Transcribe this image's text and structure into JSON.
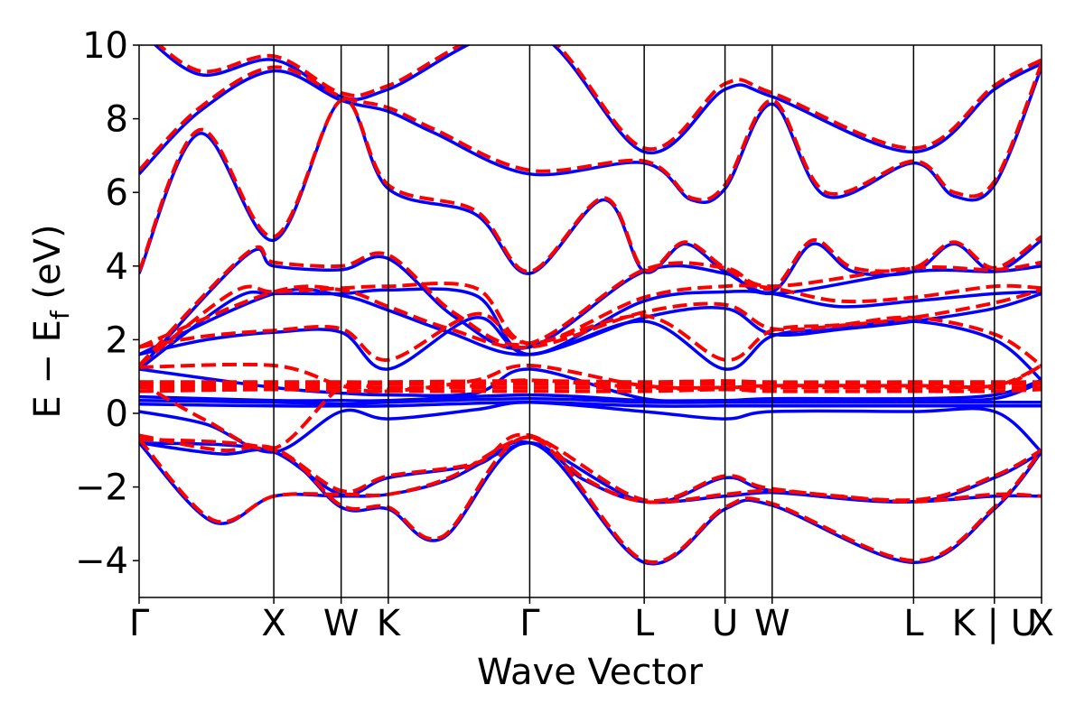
{
  "chart_data": {
    "type": "line",
    "title": "",
    "xlabel": "Wave Vector",
    "ylabel_parts": {
      "main": "E − E",
      "sub": "f",
      "unit": " (eV)"
    },
    "ylim": [
      -5,
      10
    ],
    "yticks": [
      -4,
      -2,
      0,
      2,
      4,
      6,
      8,
      10
    ],
    "ytick_labels": [
      "−4",
      "−2",
      "0",
      "2",
      "4",
      "6",
      "8",
      "10"
    ],
    "grid": false,
    "legend": "none",
    "kpath": {
      "points": [
        0,
        1.0,
        1.5,
        1.85,
        2.9,
        3.75,
        4.35,
        4.7,
        5.75,
        6.35,
        6.7
      ],
      "labels": [
        "Γ",
        "X",
        "W",
        "K",
        "Γ",
        "L",
        "U",
        "W",
        "L",
        "K | U",
        "X"
      ]
    },
    "colors": {
      "series_a": "#0000ff",
      "series_b": "#ff0000"
    },
    "series": [
      {
        "style": "solid",
        "color": "#0000ff",
        "bands": [
          {
            "x": [
              0,
              0.55,
              1.0,
              1.5,
              1.85,
              2.3,
              2.9,
              3.3,
              3.75,
              4.35,
              4.7,
              5.2,
              5.75,
              6.35,
              6.7
            ],
            "y": [
              -0.8,
              -2.95,
              -2.25,
              -2.25,
              -2.2,
              -1.8,
              -0.8,
              -1.8,
              -2.4,
              -2.25,
              -2.15,
              -2.3,
              -2.4,
              -2.25,
              -2.25
            ]
          },
          {
            "x": [
              0,
              1.0,
              1.5,
              1.85,
              2.25,
              2.9,
              3.75,
              4.35,
              4.7,
              5.75,
              6.35,
              6.7
            ],
            "y": [
              -0.8,
              -1.05,
              -2.55,
              -2.6,
              -3.4,
              -0.8,
              -4.05,
              -2.6,
              -2.5,
              -4.05,
              -2.6,
              -1.05
            ]
          },
          {
            "x": [
              0,
              0.6,
              1.0,
              1.5,
              1.85,
              2.5,
              2.9,
              3.75,
              4.35,
              4.7,
              5.75,
              6.35,
              6.7
            ],
            "y": [
              -0.8,
              -1.1,
              -1.05,
              -2.2,
              -1.75,
              -1.4,
              -0.8,
              -2.4,
              -1.75,
              -2.1,
              -2.4,
              -1.75,
              -1.05
            ]
          },
          {
            "x": [
              0,
              0.5,
              1.0,
              1.5,
              1.85,
              2.5,
              2.9,
              3.75,
              4.35,
              4.7,
              5.75,
              6.35,
              6.7
            ],
            "y": [
              0.05,
              -0.3,
              -1.05,
              0.05,
              -0.15,
              0.1,
              0.3,
              0.05,
              -0.15,
              0.05,
              0.05,
              0.05,
              -1.05
            ]
          },
          {
            "x": [
              0,
              1.0,
              1.5,
              1.85,
              2.9,
              3.75,
              4.35,
              4.7,
              5.75,
              6.35,
              6.7
            ],
            "y": [
              0.25,
              0.2,
              0.2,
              0.2,
              0.3,
              0.2,
              0.2,
              0.2,
              0.2,
              0.2,
              0.2
            ]
          },
          {
            "x": [
              0,
              1.0,
              1.5,
              1.85,
              2.9,
              3.75,
              4.35,
              4.7,
              5.75,
              6.35,
              6.7
            ],
            "y": [
              0.35,
              0.3,
              0.25,
              0.3,
              0.4,
              0.3,
              0.3,
              0.3,
              0.3,
              0.3,
              0.3
            ]
          },
          {
            "x": [
              0,
              1.0,
              1.5,
              1.85,
              2.9,
              3.75,
              4.35,
              4.7,
              5.75,
              6.35,
              6.7
            ],
            "y": [
              0.45,
              0.35,
              0.35,
              0.35,
              0.5,
              0.35,
              0.35,
              0.35,
              0.35,
              0.4,
              0.85
            ]
          },
          {
            "x": [
              0,
              1.0,
              1.5,
              1.85,
              2.5,
              2.9,
              3.75,
              4.35,
              4.7,
              5.75,
              6.35,
              6.7
            ],
            "y": [
              1.2,
              0.7,
              0.55,
              0.5,
              0.55,
              1.2,
              0.4,
              0.35,
              0.4,
              0.4,
              0.5,
              0.9
            ]
          },
          {
            "x": [
              0,
              0.5,
              1.0,
              1.5,
              1.85,
              2.5,
              2.9,
              3.75,
              4.35,
              4.7,
              5.2,
              5.75,
              6.35,
              6.7
            ],
            "y": [
              1.6,
              2.0,
              2.2,
              2.2,
              1.2,
              2.6,
              1.6,
              2.5,
              1.2,
              2.1,
              2.3,
              2.5,
              2.0,
              0.9
            ]
          },
          {
            "x": [
              0,
              1.0,
              1.5,
              1.85,
              2.3,
              2.9,
              3.75,
              4.35,
              4.7,
              5.25,
              5.75,
              6.35,
              6.7
            ],
            "y": [
              1.6,
              3.25,
              3.2,
              2.8,
              2.2,
              1.6,
              2.6,
              2.85,
              2.15,
              2.3,
              2.5,
              2.85,
              3.25
            ]
          },
          {
            "x": [
              0,
              0.7,
              1.0,
              1.5,
              1.85,
              2.5,
              2.9,
              3.75,
              4.35,
              4.7,
              5.2,
              5.75,
              6.35,
              6.7
            ],
            "y": [
              1.2,
              3.1,
              3.25,
              3.25,
              3.35,
              3.2,
              1.6,
              3.05,
              3.3,
              3.25,
              2.9,
              3.05,
              3.25,
              3.3
            ]
          },
          {
            "x": [
              0,
              0.8,
              1.0,
              1.5,
              1.85,
              2.35,
              2.9,
              3.75,
              4.35,
              4.7,
              5.75,
              6.35,
              6.7
            ],
            "y": [
              1.2,
              4.3,
              4.0,
              3.9,
              4.2,
              2.6,
              1.8,
              3.85,
              3.8,
              3.25,
              3.85,
              3.85,
              4.0
            ]
          },
          {
            "x": [
              0,
              0.45,
              1.0,
              1.5,
              1.85,
              2.5,
              2.9,
              3.45,
              3.75,
              4.05,
              4.35,
              4.7,
              5.0,
              5.3,
              5.75,
              6.05,
              6.35,
              6.7
            ],
            "y": [
              3.8,
              7.6,
              4.7,
              8.5,
              6.1,
              5.4,
              3.8,
              5.8,
              3.85,
              4.6,
              3.85,
              3.3,
              4.6,
              3.85,
              3.85,
              4.6,
              3.85,
              4.7
            ]
          },
          {
            "x": [
              0,
              0.45,
              1.0,
              1.5,
              1.85,
              2.2,
              2.9,
              3.75,
              4.1,
              4.35,
              4.7,
              5.1,
              5.75,
              6.05,
              6.35,
              6.7
            ],
            "y": [
              6.5,
              8.2,
              9.3,
              8.5,
              8.2,
              7.6,
              6.5,
              6.8,
              5.8,
              6.1,
              8.4,
              5.9,
              6.8,
              5.9,
              6.2,
              9.4
            ]
          },
          {
            "x": [
              0,
              0.45,
              1.0,
              1.5,
              1.85,
              2.9,
              3.75,
              4.35,
              4.7,
              5.75,
              6.35,
              6.7
            ],
            "y": [
              10.4,
              9.2,
              9.6,
              8.6,
              8.8,
              10.4,
              7.1,
              8.8,
              8.6,
              7.1,
              8.8,
              9.5
            ]
          }
        ]
      },
      {
        "style": "dashed",
        "color": "#ff0000",
        "bands": [
          {
            "x": [
              0,
              0.55,
              1.0,
              1.5,
              1.85,
              2.3,
              2.9,
              3.3,
              3.75,
              4.35,
              4.7,
              5.2,
              5.75,
              6.35,
              6.7
            ],
            "y": [
              -0.7,
              -2.9,
              -2.25,
              -2.2,
              -2.2,
              -1.75,
              -0.65,
              -1.75,
              -2.4,
              -2.2,
              -2.1,
              -2.25,
              -2.4,
              -2.2,
              -2.25
            ]
          },
          {
            "x": [
              0,
              1.0,
              1.5,
              1.85,
              2.25,
              2.9,
              3.75,
              4.35,
              4.7,
              5.75,
              6.35,
              6.7
            ],
            "y": [
              -0.7,
              -1.0,
              -2.5,
              -2.55,
              -3.35,
              -0.65,
              -4.0,
              -2.55,
              -2.45,
              -4.0,
              -2.55,
              -1.0
            ]
          },
          {
            "x": [
              0,
              0.6,
              1.0,
              1.5,
              1.85,
              2.5,
              2.9,
              3.75,
              4.35,
              4.7,
              5.75,
              6.35,
              6.7
            ],
            "y": [
              -0.6,
              -1.0,
              -0.95,
              -2.1,
              -1.7,
              -1.35,
              -0.6,
              -2.35,
              -1.7,
              -2.05,
              -2.35,
              -1.7,
              -1.0
            ]
          },
          {
            "x": [
              0,
              1.0,
              1.5,
              1.85,
              2.9,
              3.75,
              4.35,
              4.7,
              5.75,
              6.35,
              6.7
            ],
            "y": [
              0.6,
              0.65,
              0.6,
              0.6,
              0.6,
              0.6,
              0.65,
              0.6,
              0.6,
              0.6,
              0.65
            ]
          },
          {
            "x": [
              0,
              1.0,
              1.5,
              1.85,
              2.9,
              3.75,
              4.35,
              4.7,
              5.75,
              6.35,
              6.7
            ],
            "y": [
              0.7,
              0.7,
              0.7,
              0.7,
              0.7,
              0.7,
              0.7,
              0.7,
              0.7,
              0.7,
              0.7
            ]
          },
          {
            "x": [
              0,
              1.0,
              1.5,
              1.85,
              2.9,
              3.75,
              4.35,
              4.7,
              5.75,
              6.35,
              6.7
            ],
            "y": [
              0.78,
              0.78,
              0.8,
              0.8,
              0.8,
              0.8,
              0.8,
              0.8,
              0.8,
              0.8,
              0.8
            ]
          },
          {
            "x": [
              0,
              1.0,
              1.5,
              1.85,
              2.9,
              3.75,
              4.35,
              4.7,
              5.75,
              6.35,
              6.7
            ],
            "y": [
              0.85,
              0.85,
              0.85,
              0.85,
              0.88,
              0.85,
              0.88,
              0.85,
              0.85,
              0.85,
              0.85
            ]
          },
          {
            "x": [
              0,
              0.5,
              1.0,
              1.5,
              1.85,
              2.5,
              2.9,
              3.75,
              4.35,
              4.7,
              5.75,
              6.35,
              6.7
            ],
            "y": [
              0.85,
              -0.2,
              -0.95,
              0.7,
              0.65,
              0.75,
              0.9,
              0.7,
              0.65,
              0.7,
              0.7,
              0.7,
              1.3
            ]
          },
          {
            "x": [
              0,
              1.0,
              1.5,
              1.85,
              2.5,
              2.9,
              3.75,
              4.35,
              4.7,
              5.75,
              6.35,
              6.7
            ],
            "y": [
              1.25,
              1.3,
              0.75,
              0.6,
              0.9,
              1.3,
              0.75,
              0.7,
              0.75,
              0.75,
              0.75,
              1.3
            ]
          },
          {
            "x": [
              0,
              0.5,
              1.0,
              1.5,
              1.85,
              2.5,
              2.9,
              3.75,
              4.35,
              4.7,
              5.2,
              5.75,
              6.35,
              6.7
            ],
            "y": [
              1.8,
              2.1,
              2.25,
              2.3,
              1.45,
              2.7,
              1.9,
              2.65,
              1.45,
              2.25,
              2.4,
              2.6,
              2.15,
              1.3
            ]
          },
          {
            "x": [
              0,
              1.0,
              1.5,
              1.85,
              2.3,
              2.9,
              3.75,
              4.35,
              4.7,
              5.25,
              5.75,
              6.35,
              6.7
            ],
            "y": [
              1.8,
              3.3,
              3.35,
              2.9,
              2.3,
              1.8,
              2.75,
              2.95,
              2.3,
              2.4,
              2.6,
              3.0,
              3.35
            ]
          },
          {
            "x": [
              0,
              0.7,
              1.0,
              1.5,
              1.85,
              2.5,
              2.9,
              3.75,
              4.35,
              4.7,
              5.2,
              5.75,
              6.35,
              6.7
            ],
            "y": [
              1.3,
              3.3,
              3.3,
              3.4,
              3.45,
              3.4,
              1.9,
              3.15,
              3.45,
              3.4,
              3.05,
              3.15,
              3.45,
              3.4
            ]
          },
          {
            "x": [
              0,
              0.8,
              1.0,
              1.5,
              1.85,
              2.35,
              2.9,
              3.75,
              4.35,
              4.7,
              5.75,
              6.35,
              6.7
            ],
            "y": [
              1.3,
              4.35,
              4.1,
              4.0,
              4.3,
              2.7,
              1.9,
              3.9,
              3.95,
              3.45,
              3.95,
              3.9,
              4.1
            ]
          },
          {
            "x": [
              0,
              0.45,
              1.0,
              1.5,
              1.85,
              2.5,
              2.9,
              3.45,
              3.75,
              4.05,
              4.35,
              4.7,
              5.0,
              5.3,
              5.75,
              6.05,
              6.35,
              6.7
            ],
            "y": [
              3.85,
              7.7,
              4.8,
              8.5,
              6.2,
              5.5,
              3.85,
              5.85,
              3.9,
              4.65,
              3.95,
              3.4,
              4.7,
              3.95,
              3.95,
              4.65,
              3.95,
              4.8
            ]
          },
          {
            "x": [
              0,
              0.45,
              1.0,
              1.5,
              1.85,
              2.2,
              2.9,
              3.75,
              4.1,
              4.35,
              4.7,
              5.1,
              5.75,
              6.05,
              6.35,
              6.7
            ],
            "y": [
              6.6,
              8.3,
              9.4,
              8.6,
              8.3,
              7.7,
              6.6,
              6.85,
              5.85,
              6.2,
              8.5,
              6.0,
              6.85,
              6.0,
              6.3,
              9.5
            ]
          },
          {
            "x": [
              0,
              0.45,
              1.0,
              1.5,
              1.85,
              2.9,
              3.75,
              4.35,
              4.7,
              5.75,
              6.35,
              6.7
            ],
            "y": [
              10.5,
              9.3,
              9.7,
              8.7,
              8.9,
              10.5,
              7.2,
              8.95,
              8.7,
              7.2,
              8.9,
              9.6
            ]
          }
        ]
      }
    ]
  }
}
